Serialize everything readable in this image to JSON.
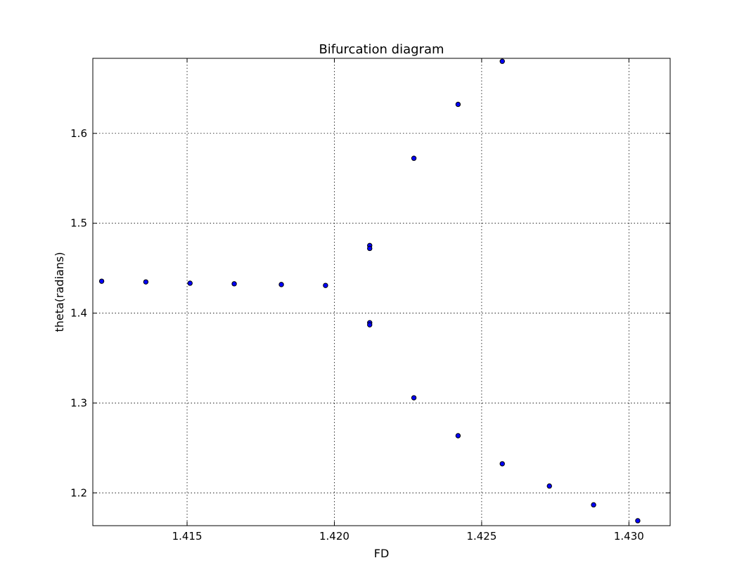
{
  "chart_data": {
    "type": "scatter",
    "title": "Bifurcation diagram",
    "xlabel": "FD",
    "ylabel": "theta(radians)",
    "xlim": [
      1.4118,
      1.4314
    ],
    "ylim": [
      1.1635,
      1.6835
    ],
    "xticks": [
      1.415,
      1.42,
      1.425,
      1.43
    ],
    "xtick_labels": [
      "1.415",
      "1.420",
      "1.425",
      "1.430"
    ],
    "yticks": [
      1.2,
      1.3,
      1.4,
      1.5,
      1.6
    ],
    "ytick_labels": [
      "1.2",
      "1.3",
      "1.4",
      "1.5",
      "1.6"
    ],
    "grid": true,
    "marker_color": "#0000ff",
    "marker_edge": "#000000",
    "series": [
      {
        "points": [
          [
            1.4121,
            1.4355
          ],
          [
            1.4136,
            1.4347
          ],
          [
            1.4151,
            1.4333
          ],
          [
            1.4166,
            1.4326
          ],
          [
            1.4182,
            1.4318
          ],
          [
            1.4197,
            1.4308
          ],
          [
            1.4212,
            1.4752
          ],
          [
            1.4212,
            1.472
          ],
          [
            1.4212,
            1.3893
          ],
          [
            1.4212,
            1.387
          ],
          [
            1.4227,
            1.5723
          ],
          [
            1.4227,
            1.3058
          ],
          [
            1.4242,
            1.6323
          ],
          [
            1.4242,
            1.2636
          ],
          [
            1.4257,
            1.6802
          ],
          [
            1.4257,
            1.2324
          ],
          [
            1.4273,
            1.2076
          ],
          [
            1.4288,
            1.1867
          ],
          [
            1.4303,
            1.169
          ]
        ]
      }
    ]
  }
}
